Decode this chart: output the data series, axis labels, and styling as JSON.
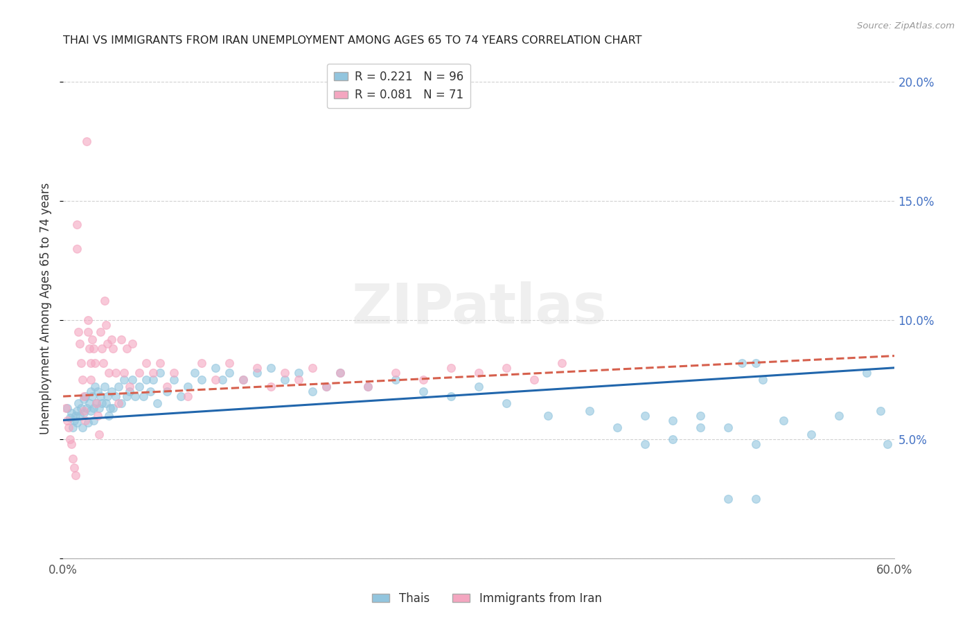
{
  "title": "THAI VS IMMIGRANTS FROM IRAN UNEMPLOYMENT AMONG AGES 65 TO 74 YEARS CORRELATION CHART",
  "source": "Source: ZipAtlas.com",
  "ylabel": "Unemployment Among Ages 65 to 74 years",
  "xlim": [
    0.0,
    0.6
  ],
  "ylim": [
    0.0,
    0.21
  ],
  "x_ticks": [
    0.0,
    0.1,
    0.2,
    0.3,
    0.4,
    0.5,
    0.6
  ],
  "x_tick_labels": [
    "0.0%",
    "",
    "",
    "",
    "",
    "",
    "60.0%"
  ],
  "y_ticks": [
    0.0,
    0.05,
    0.1,
    0.15,
    0.2
  ],
  "y_tick_labels": [
    "",
    "5.0%",
    "10.0%",
    "15.0%",
    "20.0%"
  ],
  "thais_R": 0.221,
  "thais_N": 96,
  "iran_R": 0.081,
  "iran_N": 71,
  "thais_color": "#92c5de",
  "iran_color": "#f4a6c0",
  "thais_line_color": "#2166ac",
  "iran_line_color": "#d6604d",
  "watermark": "ZIPatlas",
  "legend_label_thais": "Thais",
  "legend_label_iran": "Immigrants from Iran",
  "thais_scatter_x": [
    0.003,
    0.005,
    0.006,
    0.007,
    0.008,
    0.009,
    0.01,
    0.01,
    0.011,
    0.012,
    0.013,
    0.014,
    0.015,
    0.015,
    0.016,
    0.017,
    0.018,
    0.019,
    0.02,
    0.02,
    0.021,
    0.022,
    0.022,
    0.023,
    0.024,
    0.025,
    0.026,
    0.027,
    0.028,
    0.03,
    0.031,
    0.032,
    0.033,
    0.034,
    0.035,
    0.036,
    0.038,
    0.04,
    0.042,
    0.044,
    0.046,
    0.048,
    0.05,
    0.052,
    0.055,
    0.058,
    0.06,
    0.063,
    0.065,
    0.068,
    0.07,
    0.075,
    0.08,
    0.085,
    0.09,
    0.095,
    0.1,
    0.11,
    0.115,
    0.12,
    0.13,
    0.14,
    0.15,
    0.16,
    0.17,
    0.18,
    0.19,
    0.2,
    0.22,
    0.24,
    0.26,
    0.28,
    0.3,
    0.32,
    0.35,
    0.38,
    0.4,
    0.42,
    0.44,
    0.46,
    0.48,
    0.5,
    0.52,
    0.54,
    0.56,
    0.58,
    0.59,
    0.595,
    0.49,
    0.5,
    0.505,
    0.42,
    0.44,
    0.46,
    0.48,
    0.5
  ],
  "thais_scatter_y": [
    0.063,
    0.059,
    0.061,
    0.055,
    0.058,
    0.06,
    0.062,
    0.057,
    0.065,
    0.06,
    0.063,
    0.055,
    0.067,
    0.061,
    0.068,
    0.063,
    0.057,
    0.065,
    0.07,
    0.062,
    0.068,
    0.063,
    0.058,
    0.072,
    0.065,
    0.07,
    0.063,
    0.068,
    0.065,
    0.072,
    0.065,
    0.068,
    0.06,
    0.063,
    0.07,
    0.063,
    0.068,
    0.072,
    0.065,
    0.075,
    0.068,
    0.07,
    0.075,
    0.068,
    0.072,
    0.068,
    0.075,
    0.07,
    0.075,
    0.065,
    0.078,
    0.07,
    0.075,
    0.068,
    0.072,
    0.078,
    0.075,
    0.08,
    0.075,
    0.078,
    0.075,
    0.078,
    0.08,
    0.075,
    0.078,
    0.07,
    0.072,
    0.078,
    0.072,
    0.075,
    0.07,
    0.068,
    0.072,
    0.065,
    0.06,
    0.062,
    0.055,
    0.06,
    0.058,
    0.06,
    0.055,
    0.048,
    0.058,
    0.052,
    0.06,
    0.078,
    0.062,
    0.048,
    0.082,
    0.082,
    0.075,
    0.048,
    0.05,
    0.055,
    0.025,
    0.025
  ],
  "iran_scatter_x": [
    0.002,
    0.003,
    0.004,
    0.005,
    0.006,
    0.007,
    0.008,
    0.009,
    0.01,
    0.01,
    0.011,
    0.012,
    0.013,
    0.014,
    0.015,
    0.015,
    0.016,
    0.017,
    0.018,
    0.018,
    0.019,
    0.02,
    0.02,
    0.021,
    0.022,
    0.023,
    0.024,
    0.025,
    0.026,
    0.027,
    0.028,
    0.029,
    0.03,
    0.031,
    0.032,
    0.033,
    0.035,
    0.036,
    0.038,
    0.04,
    0.042,
    0.044,
    0.046,
    0.048,
    0.05,
    0.055,
    0.06,
    0.065,
    0.07,
    0.075,
    0.08,
    0.09,
    0.1,
    0.11,
    0.12,
    0.13,
    0.14,
    0.15,
    0.16,
    0.17,
    0.18,
    0.19,
    0.2,
    0.22,
    0.24,
    0.26,
    0.28,
    0.3,
    0.32,
    0.34,
    0.36
  ],
  "iran_scatter_y": [
    0.063,
    0.058,
    0.055,
    0.05,
    0.048,
    0.042,
    0.038,
    0.035,
    0.14,
    0.13,
    0.095,
    0.09,
    0.082,
    0.075,
    0.068,
    0.062,
    0.058,
    0.175,
    0.1,
    0.095,
    0.088,
    0.082,
    0.075,
    0.092,
    0.088,
    0.082,
    0.065,
    0.06,
    0.052,
    0.095,
    0.088,
    0.082,
    0.108,
    0.098,
    0.09,
    0.078,
    0.092,
    0.088,
    0.078,
    0.065,
    0.092,
    0.078,
    0.088,
    0.072,
    0.09,
    0.078,
    0.082,
    0.078,
    0.082,
    0.072,
    0.078,
    0.068,
    0.082,
    0.075,
    0.082,
    0.075,
    0.08,
    0.072,
    0.078,
    0.075,
    0.08,
    0.072,
    0.078,
    0.072,
    0.078,
    0.075,
    0.08,
    0.078,
    0.08,
    0.075,
    0.082
  ],
  "thais_trend_x": [
    0.0,
    0.6
  ],
  "thais_trend_y": [
    0.058,
    0.08
  ],
  "iran_trend_x": [
    0.0,
    0.4
  ],
  "iran_trend_y": [
    0.068,
    0.078
  ]
}
